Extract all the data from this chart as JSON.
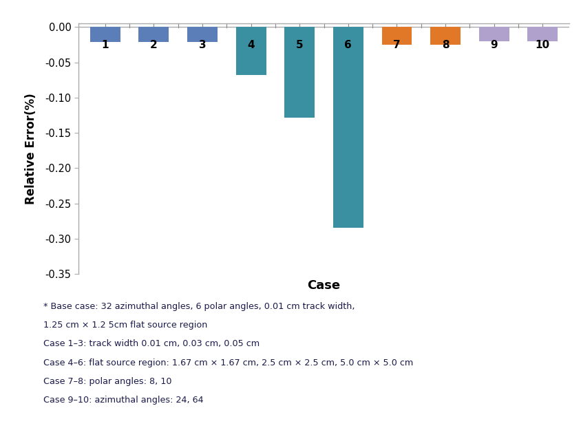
{
  "categories": [
    "1",
    "2",
    "3",
    "4",
    "5",
    "6",
    "7",
    "8",
    "9",
    "10"
  ],
  "values": [
    -0.021,
    -0.021,
    -0.021,
    -0.068,
    -0.128,
    -0.285,
    -0.025,
    -0.025,
    -0.02,
    -0.02
  ],
  "bar_colors": [
    "#5B7DB8",
    "#5B7DB8",
    "#5B7DB8",
    "#3A8FA0",
    "#3A8FA0",
    "#3A8FA0",
    "#E07828",
    "#E07828",
    "#B0A0CC",
    "#B0A0CC"
  ],
  "xlabel": "Case",
  "ylabel": "Relative Error(%)",
  "ylim": [
    -0.35,
    0.005
  ],
  "yticks": [
    0.0,
    -0.05,
    -0.1,
    -0.15,
    -0.2,
    -0.25,
    -0.3,
    -0.35
  ],
  "background_color": "#ffffff",
  "caption_color": "#1a1a4a",
  "caption_lines": [
    "* Base case: 32 azimuthal angles, 6 polar angles, 0.01 cm track width,",
    "1.25 cm × 1.2 5cm flat source region",
    "Case 1–3: track width 0.01 cm, 0.03 cm, 0.05 cm",
    "Case 4–6: flat source region: 1.67 cm × 1.67 cm, 2.5 cm × 2.5 cm, 5.0 cm × 5.0 cm",
    "Case 7–8: polar angles: 8, 10",
    "Case 9–10: azimuthal angles: 24, 64"
  ]
}
